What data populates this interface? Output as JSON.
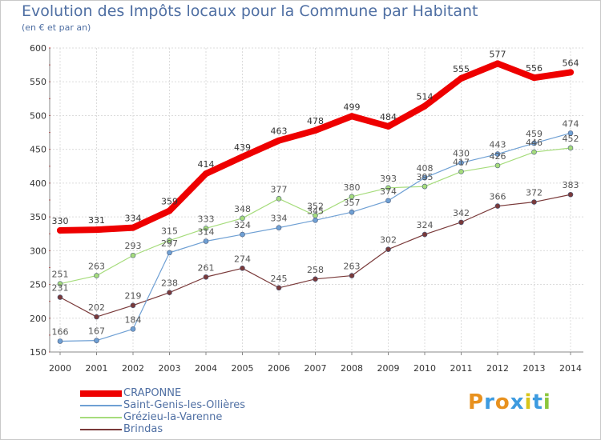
{
  "title": "Evolution des Impôts locaux pour la Commune par Habitant",
  "subtitle": "(en € et par an)",
  "logo": {
    "text": "Proxiti",
    "colors": [
      "#e8911e",
      "#3d9be0",
      "#e8911e",
      "#3d9be0",
      "#d8c51a",
      "#3d9be0",
      "#8cc63e"
    ]
  },
  "chart_data": {
    "type": "line",
    "title": "Evolution des Impôts locaux pour la Commune par Habitant",
    "subtitle": "(en € et par an)",
    "xlabel": "",
    "ylabel": "",
    "ylim": [
      150,
      600
    ],
    "yticks": [
      150,
      200,
      250,
      300,
      350,
      400,
      450,
      500,
      550,
      600
    ],
    "grid": true,
    "legend_position": "bottom-left",
    "categories": [
      "2000",
      "2001",
      "2002",
      "2003",
      "2004",
      "2005",
      "2006",
      "2007",
      "2008",
      "2009",
      "2010",
      "2011",
      "2012",
      "2013",
      "2014"
    ],
    "series": [
      {
        "name": "CRAPONNE",
        "color": "#ee0000",
        "values": [
          330,
          331,
          334,
          359,
          414,
          439,
          463,
          478,
          499,
          484,
          514,
          555,
          577,
          556,
          564
        ]
      },
      {
        "name": "Saint-Genis-les-Ollières",
        "color": "#6fa0d4",
        "values": [
          166,
          167,
          184,
          297,
          314,
          324,
          334,
          345,
          357,
          374,
          408,
          430,
          443,
          459,
          474
        ]
      },
      {
        "name": "Grézieu-la-Varenne",
        "color": "#a6dc7c",
        "values": [
          251,
          263,
          293,
          315,
          333,
          348,
          377,
          352,
          380,
          393,
          395,
          417,
          426,
          446,
          452
        ]
      },
      {
        "name": "Brindas",
        "color": "#7a3a3a",
        "values": [
          231,
          202,
          219,
          238,
          261,
          274,
          245,
          258,
          263,
          302,
          324,
          342,
          366,
          372,
          383
        ]
      }
    ]
  }
}
